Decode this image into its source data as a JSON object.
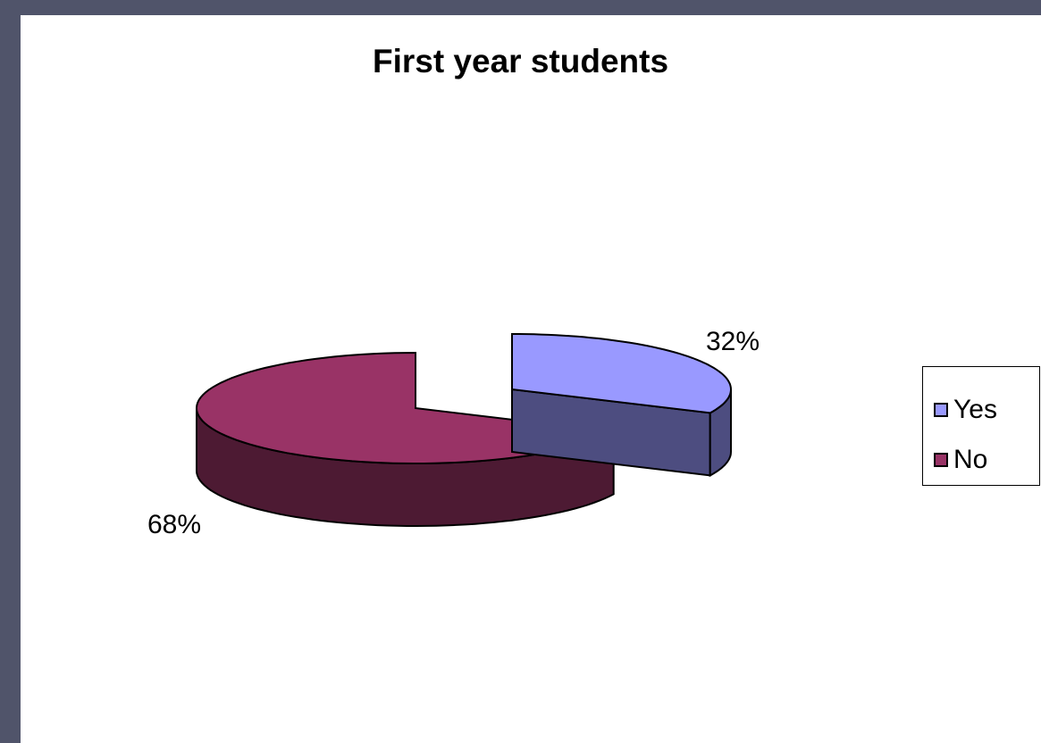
{
  "chart_data": {
    "type": "pie",
    "title": "First year students",
    "categories": [
      "Yes",
      "No"
    ],
    "values": [
      32,
      68
    ],
    "data_labels": [
      "32%",
      "68%"
    ],
    "colors": {
      "Yes": {
        "top": "#9999ff",
        "side": "#4d4d80"
      },
      "No": {
        "top": "#993366",
        "side": "#4d1a33"
      }
    },
    "legend": [
      "Yes",
      "No"
    ],
    "legend_position": "right",
    "style": "3d-exploded"
  }
}
